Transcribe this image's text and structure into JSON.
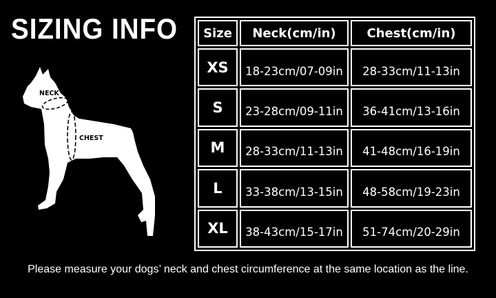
{
  "title": "SIZING INFO",
  "diagram": {
    "neck_label": "NECK",
    "chest_label": "CHEST"
  },
  "table": {
    "headers": [
      "Size",
      "Neck(cm/in)",
      "Chest(cm/in)"
    ],
    "rows": [
      {
        "size": "XS",
        "neck": "18-23cm/07-09in",
        "chest": "28-33cm/11-13in"
      },
      {
        "size": "S",
        "neck": "23-28cm/09-11in",
        "chest": "36-41cm/13-16in"
      },
      {
        "size": "M",
        "neck": "28-33cm/11-13in",
        "chest": "41-48cm/16-19in"
      },
      {
        "size": "L",
        "neck": "33-38cm/13-15in",
        "chest": "48-58cm/19-23in"
      },
      {
        "size": "XL",
        "neck": "38-43cm/15-17in",
        "chest": "51-74cm/20-29in"
      }
    ]
  },
  "note": "Please measure your dogs’  neck and chest circumference at the same location as the line."
}
